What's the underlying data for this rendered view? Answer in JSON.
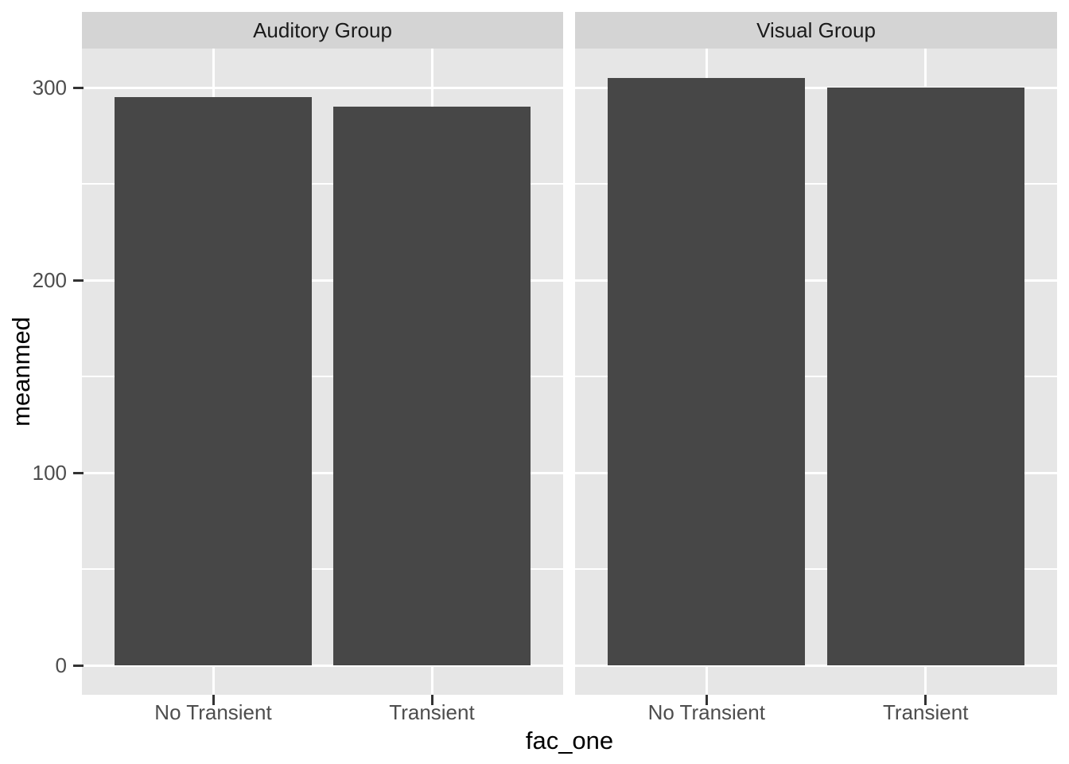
{
  "chart_data": {
    "type": "bar",
    "title": "",
    "xlabel": "fac_one",
    "ylabel": "meanmed",
    "categories": [
      "No Transient",
      "Transient"
    ],
    "series": [
      {
        "facet": "Auditory Group",
        "values": [
          295,
          290
        ]
      },
      {
        "facet": "Visual Group",
        "values": [
          305,
          300
        ]
      }
    ],
    "y_ticks": [
      0,
      100,
      200,
      300
    ],
    "y_minor_gridlines": [
      50,
      150,
      250
    ],
    "ylim": [
      -15.25,
      320.25
    ],
    "grid": "white major and minor horizontal, major vertical at category centers",
    "legend_position": "none",
    "colors": {
      "bar_fill": "#474747",
      "panel_bg": "#E6E6E6",
      "strip_bg": "#D4D4D4",
      "gridline": "#FFFFFF",
      "tick_mark": "#333333",
      "tick_label": "#4D4D4D",
      "strip_text": "#1A1A1A",
      "axis_title": "#000000",
      "figure_bg": "#FFFFFF"
    }
  }
}
